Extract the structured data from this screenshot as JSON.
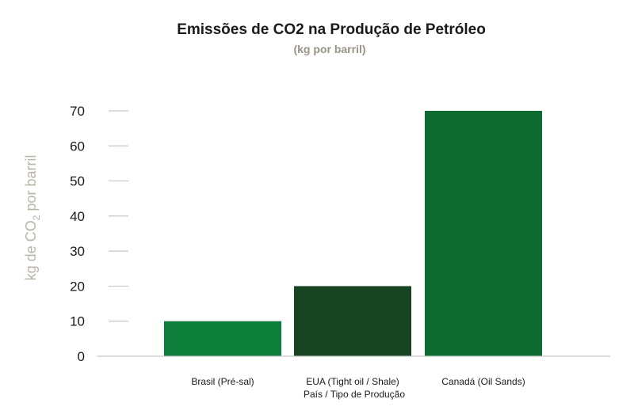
{
  "chart_data": {
    "type": "bar",
    "title": "Emissões de CO2 na Produção de Petróleo",
    "subtitle": "(kg por barril)",
    "xlabel": "País / Tipo de Produção",
    "ylabel": {
      "prefix": "kg de CO",
      "subscript": "2",
      "suffix": " por barril"
    },
    "categories": [
      "Brasil (Pré-sal)",
      "EUA (Tight oil / Shale)",
      "Canadá (Oil Sands)"
    ],
    "values": [
      10,
      20,
      70
    ],
    "colors": [
      "#0d7d3a",
      "#174422",
      "#0e6b30"
    ],
    "ylim": [
      0,
      70
    ],
    "yticks": [
      0,
      10,
      20,
      30,
      40,
      50,
      60,
      70
    ],
    "grid": false,
    "legend": "none"
  }
}
